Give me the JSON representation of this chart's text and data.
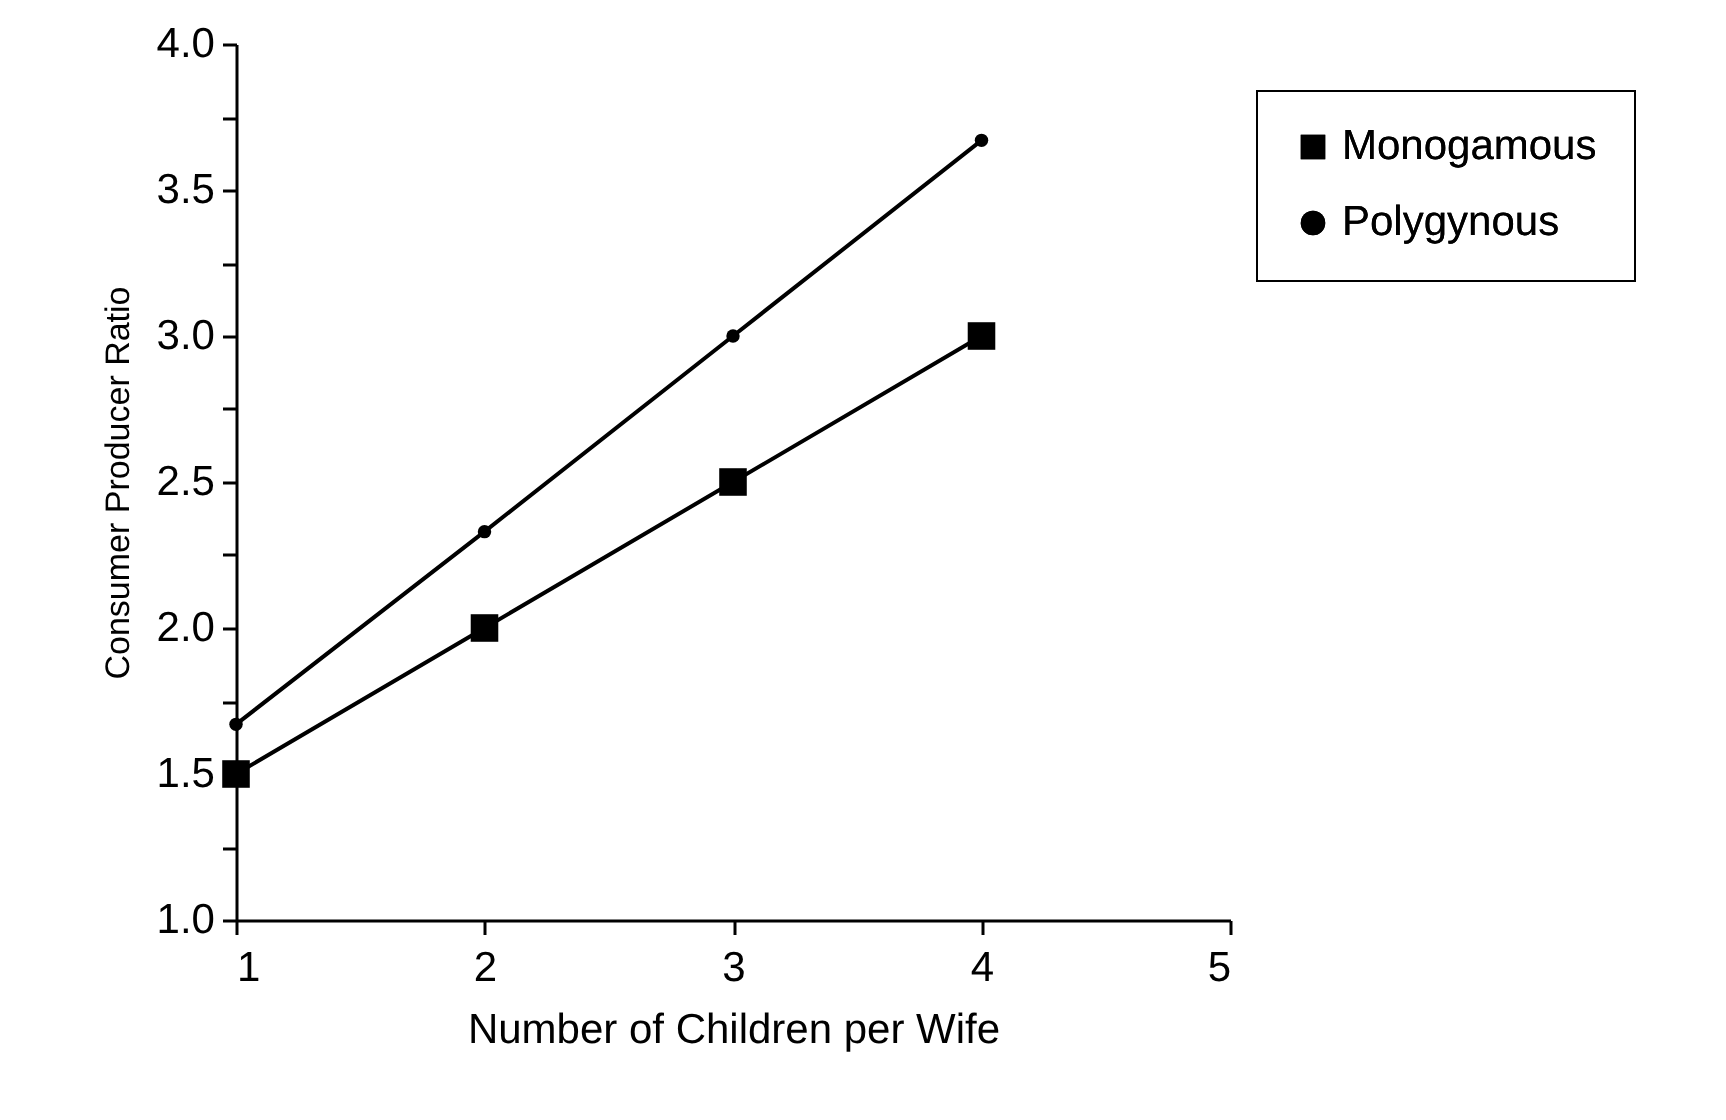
{
  "chart_data": {
    "type": "line",
    "xlabel": "Number of Children per Wife",
    "ylabel": "Consumer Producer Ratio",
    "x": [
      1,
      2,
      3,
      4
    ],
    "series": [
      {
        "name": "Monogamous",
        "color": "#000000",
        "marker": "square",
        "values": [
          1.5,
          2.0,
          2.5,
          3.0
        ]
      },
      {
        "name": "Polygynous",
        "color": "#000000",
        "marker": "circle",
        "values": [
          1.67,
          2.33,
          3.0,
          3.67
        ]
      }
    ],
    "xlim": [
      1,
      5
    ],
    "xticks": [
      1,
      2,
      3,
      4,
      5
    ],
    "ylim": [
      1,
      4
    ],
    "yticks": [
      {
        "value": 1.0,
        "label": "1.0"
      },
      {
        "value": 1.25,
        "label": null
      },
      {
        "value": 1.5,
        "label": "1.5"
      },
      {
        "value": 1.75,
        "label": null
      },
      {
        "value": 2.0,
        "label": "2.0"
      },
      {
        "value": 2.25,
        "label": null
      },
      {
        "value": 2.5,
        "label": "2.5"
      },
      {
        "value": 2.75,
        "label": null
      },
      {
        "value": 3.0,
        "label": "3.0"
      },
      {
        "value": 3.25,
        "label": null
      },
      {
        "value": 3.5,
        "label": "3.5"
      },
      {
        "value": 3.75,
        "label": null
      },
      {
        "value": 4.0,
        "label": "4.0"
      }
    ],
    "grid": false,
    "legend": "top right",
    "line_style": "solid"
  }
}
